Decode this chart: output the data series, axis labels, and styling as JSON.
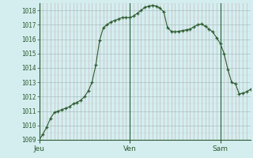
{
  "background_color": "#d4eef0",
  "plot_bg_color": "#d4eef0",
  "line_color": "#2d5a2d",
  "marker_color": "#2d5a2d",
  "axis_color": "#2d5a2d",
  "tick_label_color": "#2d5a2d",
  "grid_minor_color": "#c8b8b8",
  "grid_major_h_color": "#b8b8c8",
  "ylim": [
    1009,
    1018.5
  ],
  "yticks": [
    1009,
    1010,
    1011,
    1012,
    1013,
    1014,
    1015,
    1016,
    1017,
    1018
  ],
  "day_labels": [
    "Jeu",
    "Ven",
    "Sam"
  ],
  "day_positions": [
    0,
    24,
    48
  ],
  "x_values": [
    0,
    1,
    2,
    3,
    4,
    5,
    6,
    7,
    8,
    9,
    10,
    11,
    12,
    13,
    14,
    15,
    16,
    17,
    18,
    19,
    20,
    21,
    22,
    23,
    24,
    25,
    26,
    27,
    28,
    29,
    30,
    31,
    32,
    33,
    34,
    35,
    36,
    37,
    38,
    39,
    40,
    41,
    42,
    43,
    44,
    45,
    46,
    47,
    48,
    49,
    50,
    51,
    52,
    53,
    54,
    55,
    56
  ],
  "y_values": [
    1009.0,
    1009.4,
    1009.9,
    1010.5,
    1010.9,
    1011.0,
    1011.1,
    1011.2,
    1011.3,
    1011.5,
    1011.6,
    1011.75,
    1012.0,
    1012.4,
    1013.0,
    1014.2,
    1015.9,
    1016.8,
    1017.0,
    1017.2,
    1017.3,
    1017.4,
    1017.5,
    1017.5,
    1017.5,
    1017.6,
    1017.8,
    1018.0,
    1018.2,
    1018.3,
    1018.35,
    1018.3,
    1018.15,
    1017.9,
    1016.8,
    1016.55,
    1016.5,
    1016.55,
    1016.6,
    1016.65,
    1016.7,
    1016.85,
    1017.0,
    1017.05,
    1016.9,
    1016.7,
    1016.5,
    1016.1,
    1015.7,
    1015.0,
    1013.9,
    1013.0,
    1012.9,
    1012.2,
    1012.25,
    1012.35,
    1012.5
  ]
}
